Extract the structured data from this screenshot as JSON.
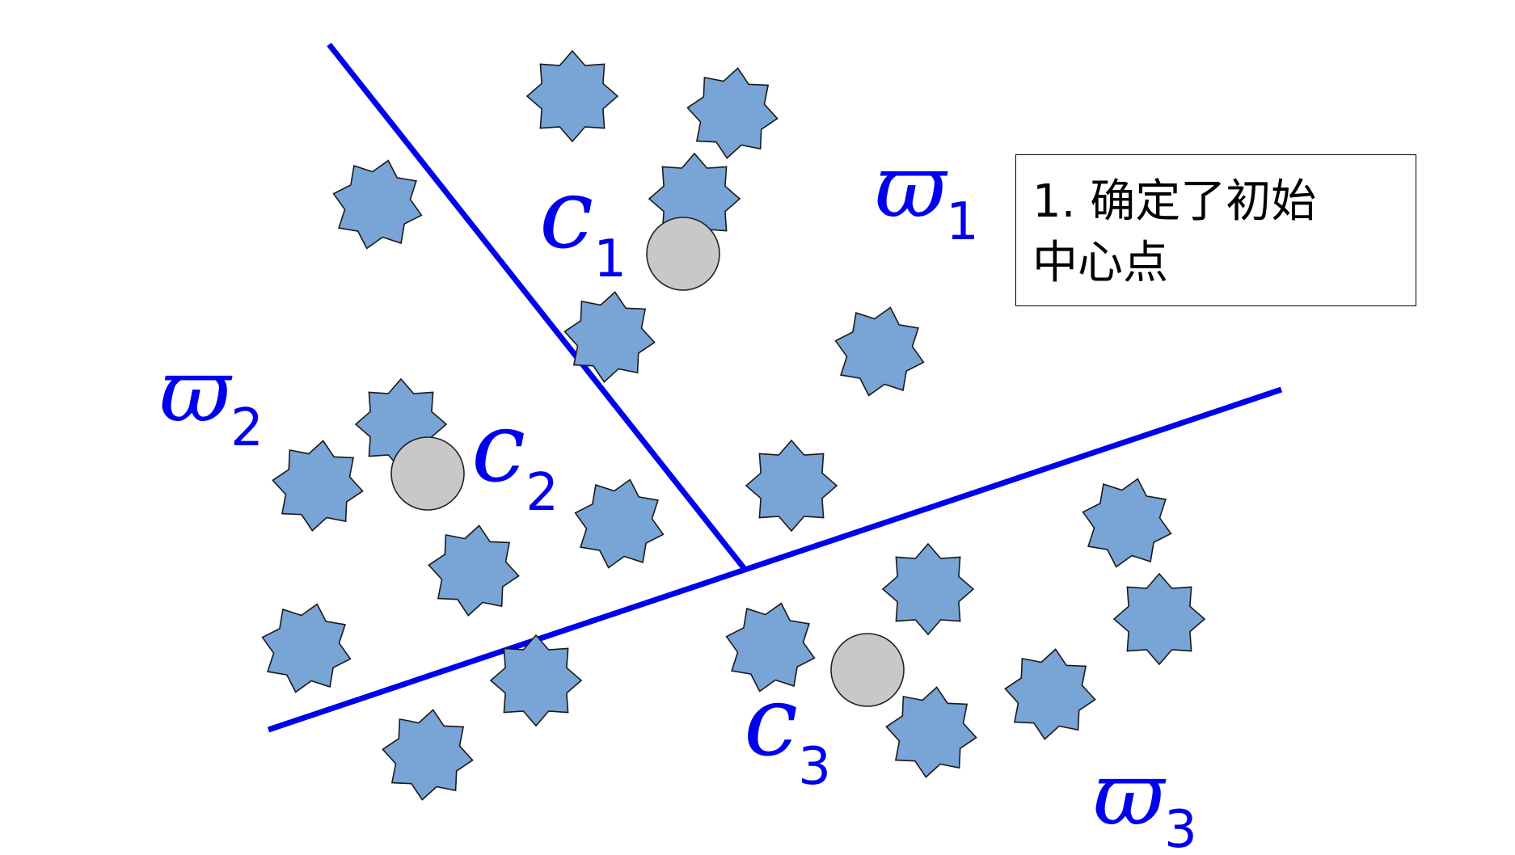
{
  "colors": {
    "line": "#0000ee",
    "star_fill": "#78a4d6",
    "star_stroke": "#1a1a1a",
    "center_fill": "#c8c8c8",
    "label": "#0000ee"
  },
  "regions": [
    {
      "symbol": "ϖ",
      "subscript": "1"
    },
    {
      "symbol": "ϖ",
      "subscript": "2"
    },
    {
      "symbol": "ϖ",
      "subscript": "3"
    }
  ],
  "centers": [
    {
      "symbol": "c",
      "subscript": "1"
    },
    {
      "symbol": "c",
      "subscript": "2"
    },
    {
      "symbol": "c",
      "subscript": "3"
    }
  ],
  "note": {
    "line1": "1. 确定了初始",
    "line2": "中心点"
  },
  "icons": {
    "data_point": "eight-point-star-icon",
    "cluster_center": "circle-icon"
  }
}
